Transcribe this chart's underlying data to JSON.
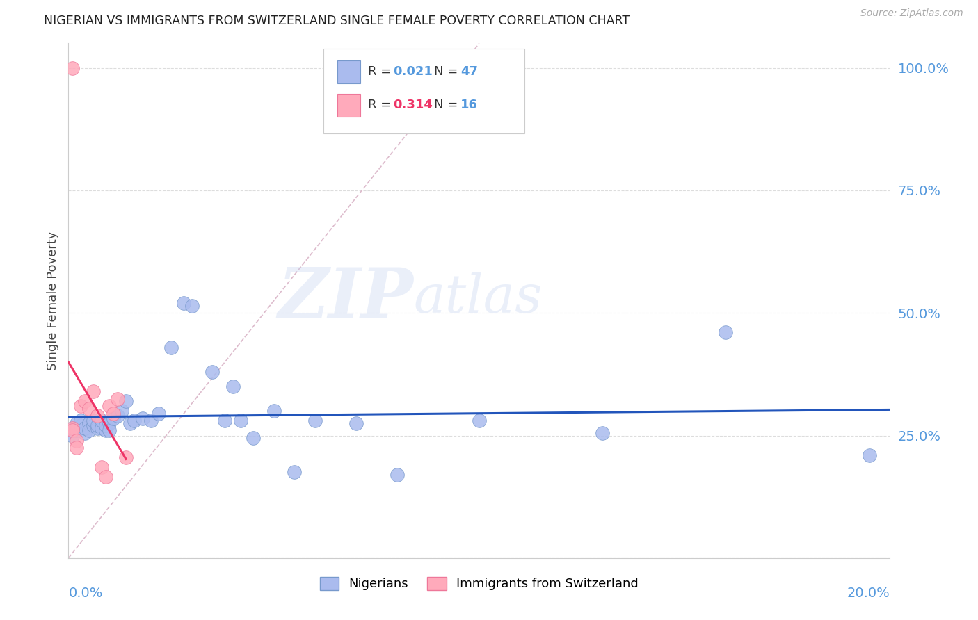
{
  "title": "NIGERIAN VS IMMIGRANTS FROM SWITZERLAND SINGLE FEMALE POVERTY CORRELATION CHART",
  "source": "Source: ZipAtlas.com",
  "ylabel": "Single Female Poverty",
  "ytick_positions": [
    0.0,
    0.25,
    0.5,
    0.75,
    1.0
  ],
  "ytick_labels": [
    "",
    "25.0%",
    "50.0%",
    "75.0%",
    "100.0%"
  ],
  "xtick_left_label": "0.0%",
  "xtick_right_label": "20.0%",
  "legend_r_blue": "0.021",
  "legend_n_blue": "47",
  "legend_r_pink": "0.314",
  "legend_n_pink": "16",
  "legend_label_blue": "Nigerians",
  "legend_label_pink": "Immigrants from Switzerland",
  "watermark_zip": "ZIP",
  "watermark_atlas": "atlas",
  "blue_fill": "#aabbee",
  "blue_edge": "#7799cc",
  "pink_fill": "#ffaabb",
  "pink_edge": "#ee7799",
  "trend_blue": "#2255bb",
  "trend_pink": "#ee3366",
  "diag_color": "#ddbbcc",
  "grid_color": "#dddddd",
  "title_color": "#222222",
  "label_color": "#5599dd",
  "source_color": "#aaaaaa",
  "bg_color": "#ffffff",
  "xmin": 0.0,
  "xmax": 0.2,
  "ymin": 0.0,
  "ymax": 1.05,
  "nigerians_x": [
    0.001,
    0.001,
    0.001,
    0.002,
    0.002,
    0.003,
    0.003,
    0.004,
    0.004,
    0.005,
    0.005,
    0.006,
    0.006,
    0.007,
    0.007,
    0.008,
    0.008,
    0.009,
    0.009,
    0.01,
    0.01,
    0.011,
    0.012,
    0.013,
    0.014,
    0.015,
    0.016,
    0.018,
    0.02,
    0.022,
    0.025,
    0.028,
    0.03,
    0.035,
    0.038,
    0.04,
    0.042,
    0.045,
    0.05,
    0.055,
    0.06,
    0.07,
    0.08,
    0.1,
    0.13,
    0.16,
    0.195
  ],
  "nigerians_y": [
    0.265,
    0.26,
    0.25,
    0.275,
    0.26,
    0.27,
    0.28,
    0.255,
    0.265,
    0.275,
    0.26,
    0.27,
    0.28,
    0.265,
    0.27,
    0.265,
    0.28,
    0.26,
    0.27,
    0.275,
    0.26,
    0.285,
    0.29,
    0.3,
    0.32,
    0.275,
    0.28,
    0.285,
    0.28,
    0.295,
    0.43,
    0.52,
    0.515,
    0.38,
    0.28,
    0.35,
    0.28,
    0.245,
    0.3,
    0.175,
    0.28,
    0.275,
    0.17,
    0.28,
    0.255,
    0.46,
    0.21
  ],
  "swiss_x": [
    0.001,
    0.001,
    0.002,
    0.002,
    0.003,
    0.004,
    0.005,
    0.006,
    0.007,
    0.008,
    0.009,
    0.01,
    0.011,
    0.012,
    0.014,
    0.001
  ],
  "swiss_y": [
    0.265,
    0.26,
    0.24,
    0.225,
    0.31,
    0.32,
    0.305,
    0.34,
    0.29,
    0.185,
    0.165,
    0.31,
    0.295,
    0.325,
    0.205,
    1.0
  ]
}
